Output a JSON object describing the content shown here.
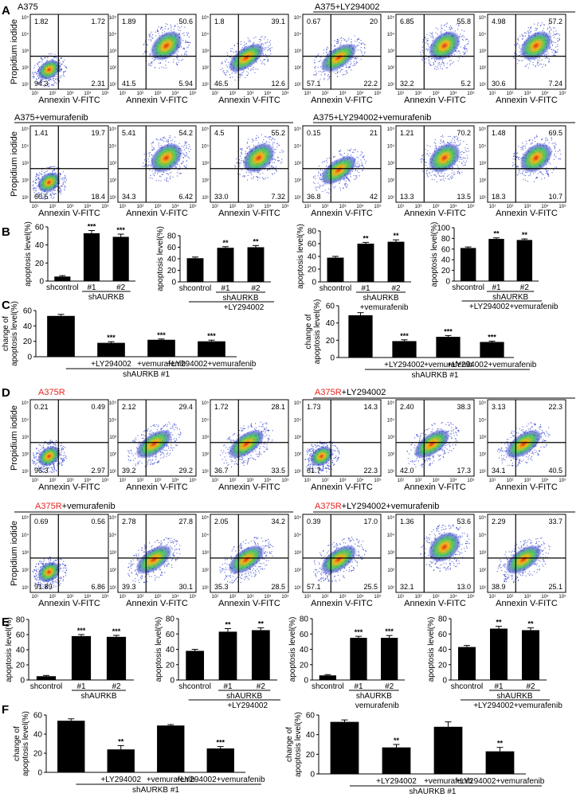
{
  "panels": {
    "A": {
      "label": "A",
      "group1_title": "A375",
      "group2_title": "A375+LY294002",
      "group3_title": "A375+vemurafenib",
      "group4_title": "A375+LY294002+vemurafenib"
    },
    "B": {
      "label": "B"
    },
    "C": {
      "label": "C"
    },
    "D": {
      "label": "D",
      "group1_prefix": "A375R",
      "group1_suffix": "",
      "group2_prefix": "A375R",
      "group2_suffix": "+LY294002",
      "group3_prefix": "A375R",
      "group3_suffix": "+vemurafenib",
      "group4_prefix": "A375R",
      "group4_suffix": "+LY294002+vemurafenib"
    },
    "E": {
      "label": "E"
    },
    "F": {
      "label": "F"
    }
  },
  "flow_axes": {
    "xlabel": "Annexin V-FITC",
    "ylabel": "Propidium iodide",
    "ticks": [
      "10¹",
      "10²",
      "10³",
      "10⁴",
      "10⁵"
    ]
  },
  "flow_quadrants": {
    "A_row1": [
      [
        "1.82",
        "1.72",
        "94.3",
        "2.31"
      ],
      [
        "1.89",
        "50.6",
        "41.5",
        "5.94"
      ],
      [
        "1.8",
        "39.1",
        "46.5",
        "12.6"
      ],
      [
        "0.67",
        "20",
        "57.1",
        "22.2"
      ],
      [
        "6.85",
        "55.8",
        "32.2",
        "5.2"
      ],
      [
        "4.98",
        "57.2",
        "30.6",
        "7.24"
      ]
    ],
    "A_row2": [
      [
        "1.41",
        "19.7",
        "60.5",
        "18.4"
      ],
      [
        "5.41",
        "54.2",
        "34.3",
        "6.42"
      ],
      [
        "4.5",
        "55.2",
        "33.0",
        "7.32"
      ],
      [
        "0.15",
        "21",
        "36.8",
        "42"
      ],
      [
        "1.21",
        "70.2",
        "13.3",
        "13.5"
      ],
      [
        "1.48",
        "69.5",
        "18.3",
        "10.7"
      ]
    ],
    "D_row1": [
      [
        "0.21",
        "0.49",
        "96.3",
        "2.97"
      ],
      [
        "2.12",
        "29.4",
        "39.2",
        "29.2"
      ],
      [
        "1.72",
        "28.1",
        "36.7",
        "33.5"
      ],
      [
        "1.73",
        "14.3",
        "61.7",
        "22.3"
      ],
      [
        "2.40",
        "38.3",
        "42.0",
        "17.3"
      ],
      [
        "3.13",
        "22.3",
        "34.1",
        "40.5"
      ]
    ],
    "D_row2": [
      [
        "0.69",
        "0.56",
        "91.89",
        "6.86"
      ],
      [
        "2.78",
        "27.8",
        "39.3",
        "30.1"
      ],
      [
        "2.05",
        "34.2",
        "35.3",
        "28.5"
      ],
      [
        "0.39",
        "17.0",
        "57.1",
        "25.5"
      ],
      [
        "1.36",
        "53.6",
        "32.1",
        "13.0"
      ],
      [
        "2.29",
        "33.7",
        "38.9",
        "25.1"
      ]
    ]
  },
  "labels": {
    "shcontrol": "shcontrol",
    "n1": "#1",
    "n2": "#2",
    "shAURKB": "shAURKB",
    "shAURKB1": "shAURKB #1",
    "plus_ly": "+LY294002",
    "plus_vem": "+vemurafenib",
    "plus_both": "+LY294002+vemurafenib",
    "vem_b": "+vemurafenib",
    "vem_e": "vemurafenib",
    "change_l1": "change of",
    "change_l2": "apoptosis level(%)"
  },
  "chart_data": [
    {
      "id": "B1",
      "type": "bar",
      "ylabel": "apoptosis level(%)",
      "categories": [
        "shcontrol",
        "#1",
        "#2"
      ],
      "values": [
        5,
        53,
        49
      ],
      "errors": [
        1,
        3,
        3
      ],
      "sig": [
        "",
        "***",
        "***"
      ],
      "ylim": [
        0,
        60
      ],
      "ticks": [
        0,
        20,
        40,
        60
      ]
    },
    {
      "id": "B2",
      "type": "bar",
      "ylabel": "apoptosis level(%)",
      "categories": [
        "shcontrol",
        "#1",
        "#2"
      ],
      "values": [
        41,
        59,
        60
      ],
      "errors": [
        2,
        2,
        3
      ],
      "sig": [
        "",
        "**",
        "**"
      ],
      "ylim": [
        0,
        80
      ],
      "ticks": [
        0,
        20,
        40,
        60,
        80
      ]
    },
    {
      "id": "B3",
      "type": "bar",
      "ylabel": "apoptosis level(%)",
      "categories": [
        "shcontrol",
        "#1",
        "#2"
      ],
      "values": [
        38,
        60,
        63
      ],
      "errors": [
        2,
        2,
        3
      ],
      "sig": [
        "",
        "**",
        "**"
      ],
      "ylim": [
        0,
        80
      ],
      "ticks": [
        0,
        20,
        40,
        60,
        80
      ]
    },
    {
      "id": "B4",
      "type": "bar",
      "ylabel": "apoptosis level(%)",
      "categories": [
        "shcontrol",
        "#1",
        "#2"
      ],
      "values": [
        62,
        79,
        77
      ],
      "errors": [
        2,
        2,
        2
      ],
      "sig": [
        "",
        "**",
        "**"
      ],
      "ylim": [
        0,
        100
      ],
      "ticks": [
        0,
        20,
        40,
        60,
        80,
        100
      ]
    },
    {
      "id": "C1",
      "type": "bar",
      "ylabel": "change of apoptosis level(%)",
      "categories": [
        "",
        "+LY294002",
        "+vemurafenib",
        "+LY294002+vemurafenib"
      ],
      "values": [
        53,
        18,
        22,
        20
      ],
      "errors": [
        2,
        1.5,
        1,
        1.5
      ],
      "sig": [
        "",
        "***",
        "***",
        "***"
      ],
      "ylim": [
        0,
        60
      ],
      "ticks": [
        0,
        20,
        40,
        60
      ]
    },
    {
      "id": "C2",
      "type": "bar",
      "ylabel": "change of apoptosis level(%)",
      "categories": [
        "",
        "+LY294002",
        "+vemurafenib",
        "+LY294002+vemurafenib"
      ],
      "values": [
        49,
        19,
        24,
        18
      ],
      "errors": [
        3,
        1.5,
        1.5,
        1
      ],
      "sig": [
        "",
        "***",
        "***",
        "***"
      ],
      "ylim": [
        0,
        60
      ],
      "ticks": [
        0,
        20,
        40,
        60
      ]
    },
    {
      "id": "E1",
      "type": "bar",
      "ylabel": "apoptosis level(%)",
      "categories": [
        "shcontrol",
        "#1",
        "#2"
      ],
      "values": [
        5,
        58,
        57
      ],
      "errors": [
        1,
        2,
        2
      ],
      "sig": [
        "",
        "***",
        "***"
      ],
      "ylim": [
        0,
        80
      ],
      "ticks": [
        0,
        20,
        40,
        60,
        80
      ]
    },
    {
      "id": "E2",
      "type": "bar",
      "ylabel": "apoptosis level(%)",
      "categories": [
        "shcontrol",
        "#1",
        "#2"
      ],
      "values": [
        38,
        63,
        65
      ],
      "errors": [
        2,
        4,
        3
      ],
      "sig": [
        "",
        "**",
        "**"
      ],
      "ylim": [
        0,
        80
      ],
      "ticks": [
        0,
        20,
        40,
        60,
        80
      ]
    },
    {
      "id": "E3",
      "type": "bar",
      "ylabel": "apoptosis level(%)",
      "categories": [
        "shcontrol",
        "#1",
        "#2"
      ],
      "values": [
        6,
        55,
        55
      ],
      "errors": [
        1,
        2,
        3
      ],
      "sig": [
        "",
        "***",
        "***"
      ],
      "ylim": [
        0,
        80
      ],
      "ticks": [
        0,
        20,
        40,
        60,
        80
      ]
    },
    {
      "id": "E4",
      "type": "bar",
      "ylabel": "apoptosis level(%)",
      "categories": [
        "shcontrol",
        "#1",
        "#2"
      ],
      "values": [
        43,
        67,
        65
      ],
      "errors": [
        2,
        3,
        3
      ],
      "sig": [
        "",
        "**",
        "**"
      ],
      "ylim": [
        0,
        80
      ],
      "ticks": [
        0,
        20,
        40,
        60,
        80
      ]
    },
    {
      "id": "F1",
      "type": "bar",
      "ylabel": "change of apoptosis level(%)",
      "categories": [
        "",
        "+LY294002",
        "+vemurafenib",
        "+LY294002+vemurafenib"
      ],
      "values": [
        54,
        24,
        49,
        25
      ],
      "errors": [
        2,
        4,
        1,
        2
      ],
      "sig": [
        "",
        "**",
        "",
        "***"
      ],
      "ylim": [
        0,
        60
      ],
      "ticks": [
        0,
        20,
        40,
        60
      ]
    },
    {
      "id": "F2",
      "type": "bar",
      "ylabel": "change of apoptosis level(%)",
      "categories": [
        "",
        "+LY294002",
        "+vemurafenib",
        "+LY294002+vemurafenib"
      ],
      "values": [
        53,
        27,
        48,
        23
      ],
      "errors": [
        2,
        3,
        5,
        4
      ],
      "sig": [
        "",
        "**",
        "",
        "**"
      ],
      "ylim": [
        0,
        60
      ],
      "ticks": [
        0,
        20,
        40,
        60
      ]
    }
  ],
  "colors": {
    "red_label": "#e8231e",
    "bar": "#000000",
    "cloud_outer": "#2030c8",
    "cloud_mid": "#2fc04a",
    "cloud_core": "#f0b000"
  }
}
